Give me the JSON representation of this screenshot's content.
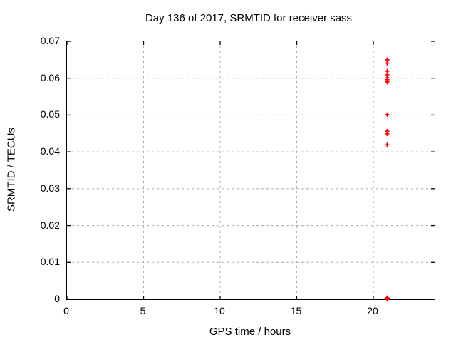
{
  "chart_data": {
    "type": "scatter",
    "title": "Day 136 of 2017, SRMTID for receiver sass",
    "xlabel": "GPS time / hours",
    "ylabel": "SRMTID / TECUs",
    "xlim": [
      0,
      24
    ],
    "ylim": [
      0,
      0.07
    ],
    "grid": true,
    "legend": "none",
    "marker": "plus-cross",
    "xticks": [
      {
        "value": 0,
        "label": "0"
      },
      {
        "value": 5,
        "label": "5"
      },
      {
        "value": 10,
        "label": "10"
      },
      {
        "value": 15,
        "label": "15"
      },
      {
        "value": 20,
        "label": "20"
      }
    ],
    "yticks": [
      {
        "value": 0,
        "label": "0"
      },
      {
        "value": 0.01,
        "label": "0.01"
      },
      {
        "value": 0.02,
        "label": "0.02"
      },
      {
        "value": 0.03,
        "label": "0.03"
      },
      {
        "value": 0.04,
        "label": "0.04"
      },
      {
        "value": 0.05,
        "label": "0.05"
      },
      {
        "value": 0.06,
        "label": "0.06"
      },
      {
        "value": 0.07,
        "label": "0.07"
      }
    ],
    "series": [
      {
        "name": "SRMTID",
        "points": [
          {
            "x": 20.9,
            "y": 0.065
          },
          {
            "x": 20.9,
            "y": 0.0641
          },
          {
            "x": 20.9,
            "y": 0.0619
          },
          {
            "x": 20.9,
            "y": 0.0609
          },
          {
            "x": 20.9,
            "y": 0.0601
          },
          {
            "x": 20.9,
            "y": 0.0596
          },
          {
            "x": 20.9,
            "y": 0.059
          },
          {
            "x": 20.9,
            "y": 0.0501
          },
          {
            "x": 20.9,
            "y": 0.0456
          },
          {
            "x": 20.9,
            "y": 0.0449
          },
          {
            "x": 20.9,
            "y": 0.0419
          },
          {
            "x": 20.88,
            "y": 0.0004
          },
          {
            "x": 20.92,
            "y": 0.0003
          },
          {
            "x": 20.9,
            "y": 0.0002
          },
          {
            "x": 20.9,
            "y": 0.0
          }
        ]
      }
    ],
    "colors": {
      "marker": "#ff0000",
      "grid": "#aaaaaa",
      "border": "#000000",
      "text": "#000000",
      "background": "#ffffff"
    }
  }
}
